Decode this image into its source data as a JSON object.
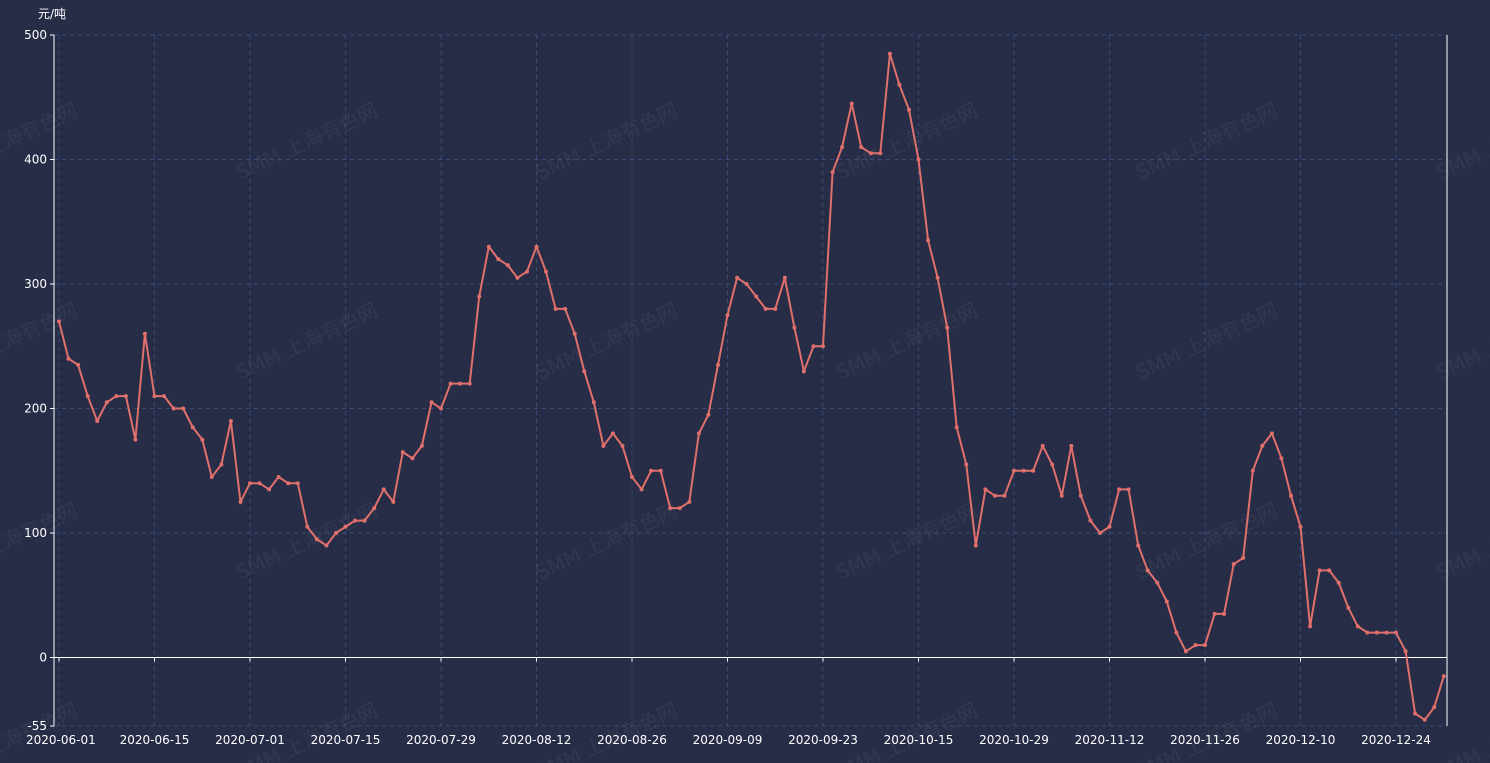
{
  "watermark": "SMM 上海有色网",
  "colors": {
    "background": "#272c47",
    "line": "#e0706b",
    "grid": "#3a4a7a",
    "axis": "#ffffff"
  },
  "chart_data": {
    "type": "line",
    "ylabel": "元/吨",
    "ylim": [
      -55,
      500
    ],
    "yticks": [
      -55,
      0,
      100,
      200,
      300,
      400,
      500
    ],
    "xticks": [
      "2020-06-01",
      "2020-06-15",
      "2020-07-01",
      "2020-07-15",
      "2020-07-29",
      "2020-08-12",
      "2020-08-26",
      "2020-09-09",
      "2020-09-23",
      "2020-10-15",
      "2020-10-29",
      "2020-11-12",
      "2020-11-26",
      "2020-12-10",
      "2020-12-24"
    ],
    "grid": true,
    "legend": "none",
    "series": [
      {
        "values": [
          270,
          240,
          235,
          210,
          190,
          205,
          210,
          210,
          175,
          260,
          210,
          210,
          200,
          200,
          185,
          175,
          145,
          155,
          190,
          125,
          140,
          140,
          135,
          145,
          140,
          140,
          105,
          95,
          90,
          100,
          105,
          110,
          110,
          120,
          135,
          125,
          165,
          160,
          170,
          205,
          200,
          220,
          220,
          220,
          290,
          330,
          320,
          315,
          305,
          310,
          330,
          310,
          280,
          280,
          260,
          230,
          205,
          170,
          180,
          170,
          145,
          135,
          150,
          150,
          120,
          120,
          125,
          180,
          195,
          235,
          275,
          305,
          300,
          290,
          280,
          280,
          305,
          265,
          230,
          250,
          250,
          390,
          410,
          445,
          410,
          405,
          405,
          485,
          460,
          440,
          400,
          335,
          305,
          265,
          185,
          155,
          90,
          135,
          130,
          130,
          150,
          150,
          150,
          170,
          155,
          130,
          170,
          130,
          110,
          100,
          105,
          135,
          135,
          90,
          70,
          60,
          45,
          20,
          5,
          10,
          10,
          35,
          35,
          75,
          80,
          150,
          170,
          180,
          160,
          130,
          105,
          25,
          70,
          70,
          60,
          40,
          25,
          20,
          20,
          20,
          20,
          5,
          -45,
          -50,
          -40,
          -15
        ]
      }
    ]
  }
}
